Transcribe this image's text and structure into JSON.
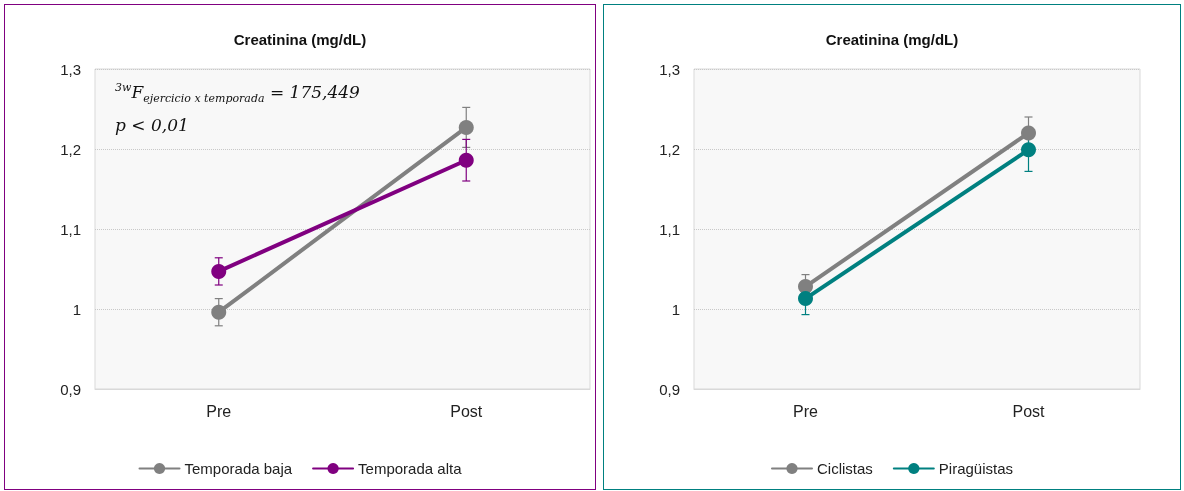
{
  "chart_data": [
    {
      "type": "line",
      "title": "Creatinina (mg/dL)",
      "categories": [
        "Pre",
        "Post"
      ],
      "series": [
        {
          "name": "Temporada baja",
          "color": "#808080",
          "values": [
            0.996,
            1.227
          ],
          "errors": [
            0.017,
            0.025
          ]
        },
        {
          "name": "Temporada alta",
          "color": "#800080",
          "values": [
            1.047,
            1.186
          ],
          "errors": [
            0.017,
            0.026
          ]
        }
      ],
      "ylim": [
        0.9,
        1.3
      ],
      "yticks": [
        {
          "value": 0.9,
          "label": "0,9"
        },
        1,
        {
          "value": 1.1,
          "label": "1,1"
        },
        {
          "value": 1.2,
          "label": "1,2"
        },
        {
          "value": 1.3,
          "label": "1,3"
        }
      ],
      "grid": "y",
      "legend": "bottom",
      "marker": "circle",
      "line_style": "solid",
      "annotations": [
        "$^{3w}$F$_{ejercicio x temporada}$ = 175,449",
        "p < 0,01"
      ]
    },
    {
      "type": "line",
      "title": "Creatinina (mg/dL)",
      "categories": [
        "Pre",
        "Post"
      ],
      "series": [
        {
          "name": "Ciclistas",
          "color": "#808080",
          "values": [
            1.028,
            1.22
          ],
          "errors": [
            0.015,
            0.02
          ]
        },
        {
          "name": "Piragüistas",
          "color": "#008080",
          "values": [
            1.013,
            1.199
          ],
          "errors": [
            0.02,
            0.027
          ]
        }
      ],
      "ylim": [
        0.9,
        1.3
      ],
      "yticks": [
        {
          "value": 0.9,
          "label": "0,9"
        },
        1,
        {
          "value": 1.1,
          "label": "1,1"
        },
        {
          "value": 1.2,
          "label": "1,2"
        },
        {
          "value": 1.3,
          "label": "1,3"
        }
      ],
      "grid": "y",
      "legend": "bottom",
      "marker": "circle",
      "line_style": "solid"
    }
  ]
}
